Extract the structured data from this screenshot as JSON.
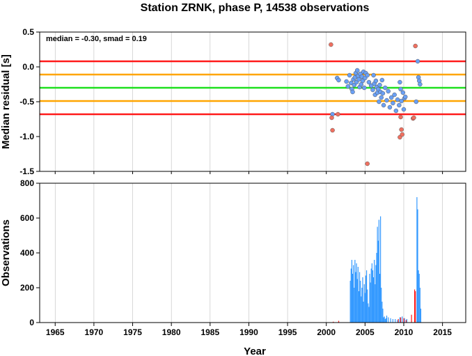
{
  "chart_data": [
    {
      "type": "scatter",
      "title": "Station ZRNK, phase P, 14538 observations",
      "xlabel": "",
      "ylabel": "Median residual [s]",
      "xlim": [
        1963,
        2018
      ],
      "ylim": [
        -1.5,
        0.5
      ],
      "xticks": [
        1965,
        1970,
        1975,
        1980,
        1985,
        1990,
        1995,
        2000,
        2005,
        2010,
        2015
      ],
      "yticks": [
        0.5,
        0.0,
        -0.5,
        -1.0,
        -1.5
      ],
      "ytick_labels": [
        "0.5",
        "0.0",
        "-0.5",
        "-1.0",
        "-1.5"
      ],
      "grid": "vertical",
      "annotation": "median = -0.30, smad = 0.19",
      "reference_lines": [
        {
          "y": 0.08,
          "color": "#ff1a1a"
        },
        {
          "y": -0.11,
          "color": "#ffa500"
        },
        {
          "y": -0.3,
          "color": "#1ee01e"
        },
        {
          "y": -0.49,
          "color": "#ffa500"
        },
        {
          "y": -0.68,
          "color": "#ff1a1a"
        }
      ],
      "series": [
        {
          "color": "#6aa0f5",
          "points": [
            [
              2000.8,
              -0.68
            ],
            [
              2001.4,
              -0.16
            ],
            [
              2001.6,
              -0.19
            ],
            [
              2002.6,
              -0.21
            ],
            [
              2002.8,
              -0.28
            ],
            [
              2003.0,
              -0.12
            ],
            [
              2003.2,
              -0.23
            ],
            [
              2003.3,
              -0.32
            ],
            [
              2003.4,
              -0.36
            ],
            [
              2003.5,
              -0.18
            ],
            [
              2003.6,
              -0.26
            ],
            [
              2003.7,
              -0.15
            ],
            [
              2003.8,
              -0.09
            ],
            [
              2003.9,
              -0.22
            ],
            [
              2004.0,
              -0.05
            ],
            [
              2004.1,
              -0.13
            ],
            [
              2004.2,
              -0.18
            ],
            [
              2004.3,
              -0.29
            ],
            [
              2004.4,
              -0.1
            ],
            [
              2004.5,
              -0.25
            ],
            [
              2004.6,
              -0.14
            ],
            [
              2004.7,
              -0.2
            ],
            [
              2004.8,
              -0.07
            ],
            [
              2004.9,
              -0.3
            ],
            [
              2005.0,
              -0.16
            ],
            [
              2005.1,
              -0.09
            ],
            [
              2005.3,
              -0.12
            ],
            [
              2005.5,
              -0.22
            ],
            [
              2005.8,
              -0.27
            ],
            [
              2006.0,
              -0.33
            ],
            [
              2006.1,
              -0.12
            ],
            [
              2006.2,
              -0.24
            ],
            [
              2006.3,
              -0.4
            ],
            [
              2006.4,
              -0.2
            ],
            [
              2006.5,
              -0.29
            ],
            [
              2006.6,
              -0.37
            ],
            [
              2006.7,
              -0.32
            ],
            [
              2006.8,
              -0.5
            ],
            [
              2006.9,
              -0.26
            ],
            [
              2007.0,
              -0.36
            ],
            [
              2007.1,
              -0.44
            ],
            [
              2007.2,
              -0.19
            ],
            [
              2007.3,
              -0.38
            ],
            [
              2007.4,
              -0.55
            ],
            [
              2007.6,
              -0.3
            ],
            [
              2007.8,
              -0.48
            ],
            [
              2008.0,
              -0.35
            ],
            [
              2008.2,
              -0.58
            ],
            [
              2008.4,
              -0.44
            ],
            [
              2008.6,
              -0.52
            ],
            [
              2008.8,
              -0.4
            ],
            [
              2009.0,
              -0.63
            ],
            [
              2009.2,
              -0.47
            ],
            [
              2009.4,
              -0.55
            ],
            [
              2009.5,
              -0.22
            ],
            [
              2009.6,
              -0.32
            ],
            [
              2009.7,
              -0.49
            ],
            [
              2009.9,
              -0.37
            ],
            [
              2010.0,
              -0.61
            ],
            [
              2010.1,
              -0.45
            ],
            [
              2010.2,
              -0.43
            ],
            [
              2011.6,
              -0.5
            ],
            [
              2011.8,
              0.08
            ],
            [
              2011.9,
              -0.15
            ],
            [
              2012.0,
              -0.2
            ],
            [
              2012.1,
              -0.25
            ]
          ]
        },
        {
          "color": "#f07060",
          "points": [
            [
              2000.6,
              0.32
            ],
            [
              2000.7,
              -0.73
            ],
            [
              2000.8,
              -0.91
            ],
            [
              2001.5,
              -0.68
            ],
            [
              2005.3,
              -1.39
            ],
            [
              2009.5,
              -1.01
            ],
            [
              2009.6,
              -0.72
            ],
            [
              2009.7,
              -0.9
            ],
            [
              2009.8,
              -0.97
            ],
            [
              2011.2,
              -0.74
            ],
            [
              2011.3,
              -0.73
            ],
            [
              2011.5,
              0.3
            ]
          ]
        }
      ]
    },
    {
      "type": "bar",
      "title": "",
      "xlabel": "Year",
      "ylabel": "Observations",
      "xlim": [
        1963,
        2018
      ],
      "ylim": [
        0,
        800
      ],
      "xticks": [
        1965,
        1970,
        1975,
        1980,
        1985,
        1990,
        1995,
        2000,
        2005,
        2010,
        2015
      ],
      "yticks": [
        0,
        200,
        400,
        600,
        800
      ],
      "grid": "vertical",
      "series": [
        {
          "color": "#3399ff",
          "x": [
            2003.1,
            2003.2,
            2003.3,
            2003.4,
            2003.5,
            2003.6,
            2003.7,
            2003.8,
            2003.9,
            2004.0,
            2004.1,
            2004.2,
            2004.3,
            2004.4,
            2004.5,
            2004.6,
            2004.7,
            2004.8,
            2004.9,
            2005.0,
            2005.1,
            2005.2,
            2005.3,
            2005.4,
            2005.5,
            2005.6,
            2005.7,
            2005.8,
            2005.9,
            2006.0,
            2006.1,
            2006.2,
            2006.3,
            2006.4,
            2006.5,
            2006.6,
            2006.7,
            2006.8,
            2006.9,
            2007.0,
            2007.1,
            2007.2,
            2007.3,
            2007.4,
            2007.5,
            2007.6,
            2007.7,
            2007.8,
            2008.0,
            2008.3,
            2008.6,
            2008.9,
            2009.2,
            2009.5,
            2009.8,
            2010.1,
            2010.4,
            2011.7,
            2011.8,
            2011.9,
            2012.0,
            2012.1,
            2012.2
          ],
          "values": [
            240,
            310,
            360,
            280,
            330,
            200,
            360,
            290,
            340,
            250,
            320,
            180,
            290,
            240,
            150,
            200,
            260,
            120,
            220,
            170,
            270,
            300,
            190,
            110,
            90,
            280,
            230,
            310,
            340,
            300,
            260,
            360,
            220,
            330,
            400,
            550,
            470,
            590,
            280,
            610,
            200,
            120,
            80,
            30,
            35,
            20,
            25,
            40,
            30,
            25,
            20,
            20,
            15,
            30,
            35,
            25,
            20,
            720,
            650,
            300,
            280,
            200,
            80
          ]
        },
        {
          "color": "#ff1a1a",
          "x": [
            2000.9,
            2001.6,
            2009.3,
            2009.6,
            2010.0,
            2010.3,
            2011.0,
            2011.4,
            2011.5
          ],
          "values": [
            5,
            10,
            20,
            30,
            25,
            15,
            45,
            190,
            180
          ]
        }
      ]
    }
  ]
}
